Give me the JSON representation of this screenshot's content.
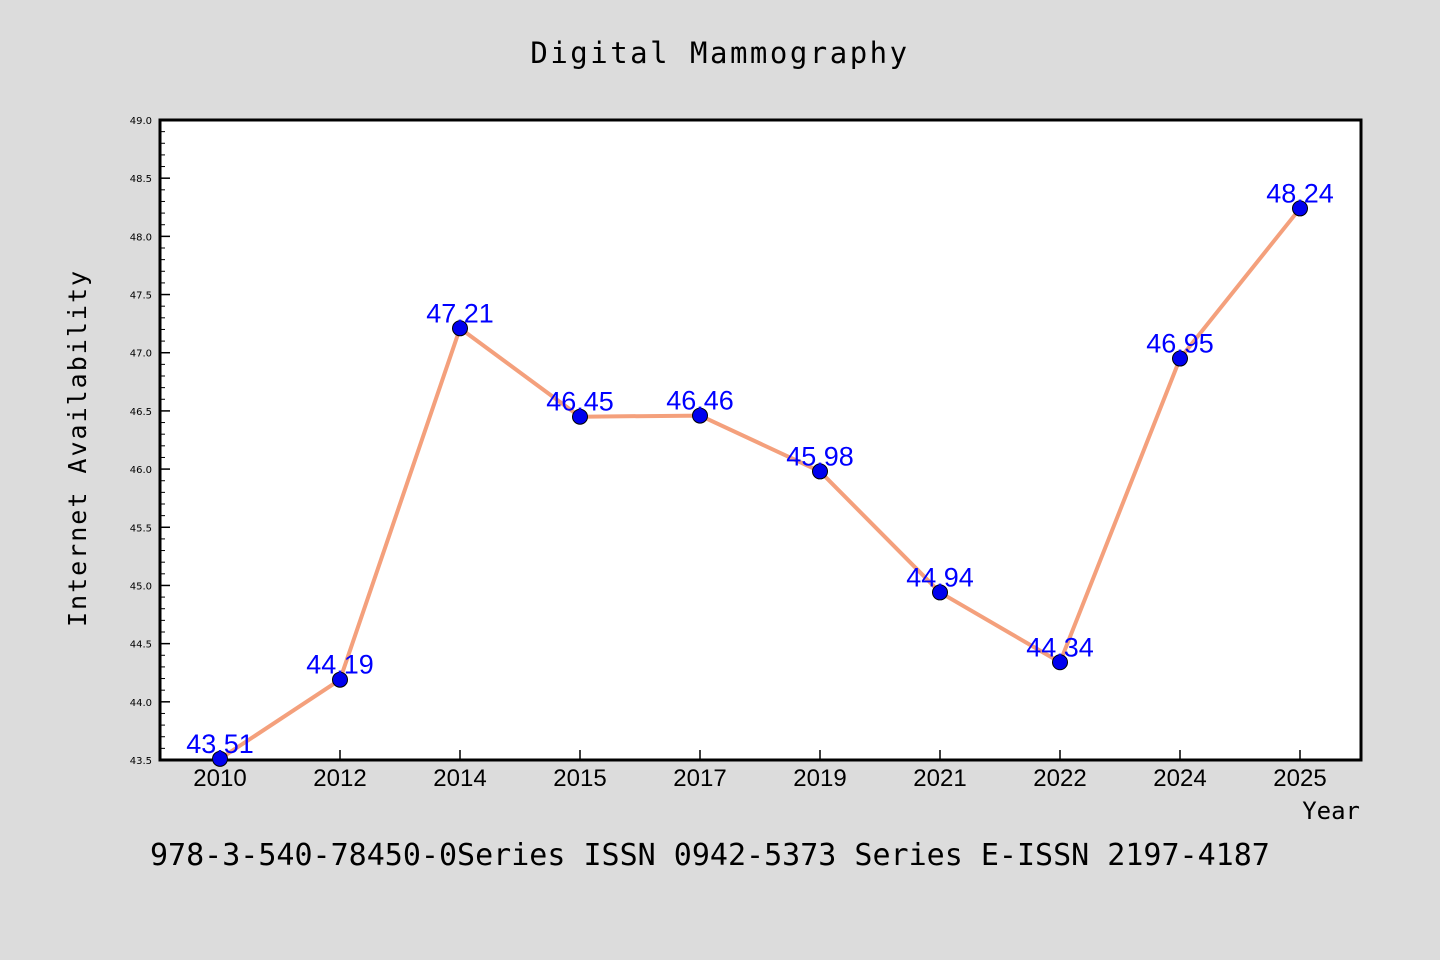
{
  "chart_data": {
    "type": "line",
    "title": "Digital Mammography",
    "xlabel": "Year",
    "ylabel": "Internet Availability",
    "footer": "978-3-540-78450-0Series ISSN 0942-5373 Series E-ISSN 2197-4187",
    "categories": [
      "2010",
      "2012",
      "2014",
      "2015",
      "2017",
      "2019",
      "2021",
      "2022",
      "2024",
      "2025"
    ],
    "series": [
      {
        "values": [
          43.51,
          44.19,
          47.21,
          46.45,
          46.46,
          45.98,
          44.94,
          44.34,
          46.95,
          48.24
        ]
      }
    ],
    "data_labels": [
      "43.51",
      "44.19",
      "47.21",
      "46.45",
      "46.46",
      "45.98",
      "44.94",
      "44.34",
      "46.95",
      "48.24"
    ],
    "ylim": [
      43.5,
      49.0
    ],
    "yticks": [
      "43.5",
      "44.0",
      "44.5",
      "45.0",
      "45.5",
      "46.0",
      "46.5",
      "47.0",
      "47.5",
      "48.0",
      "48.5",
      "49.0"
    ],
    "grid": false,
    "colors": {
      "background": "#dcdcdc",
      "plot_background": "#ffffff",
      "line": "#f4a07c",
      "marker": "#0000ee",
      "data_label": "#0000ff",
      "text": "#000000"
    }
  }
}
